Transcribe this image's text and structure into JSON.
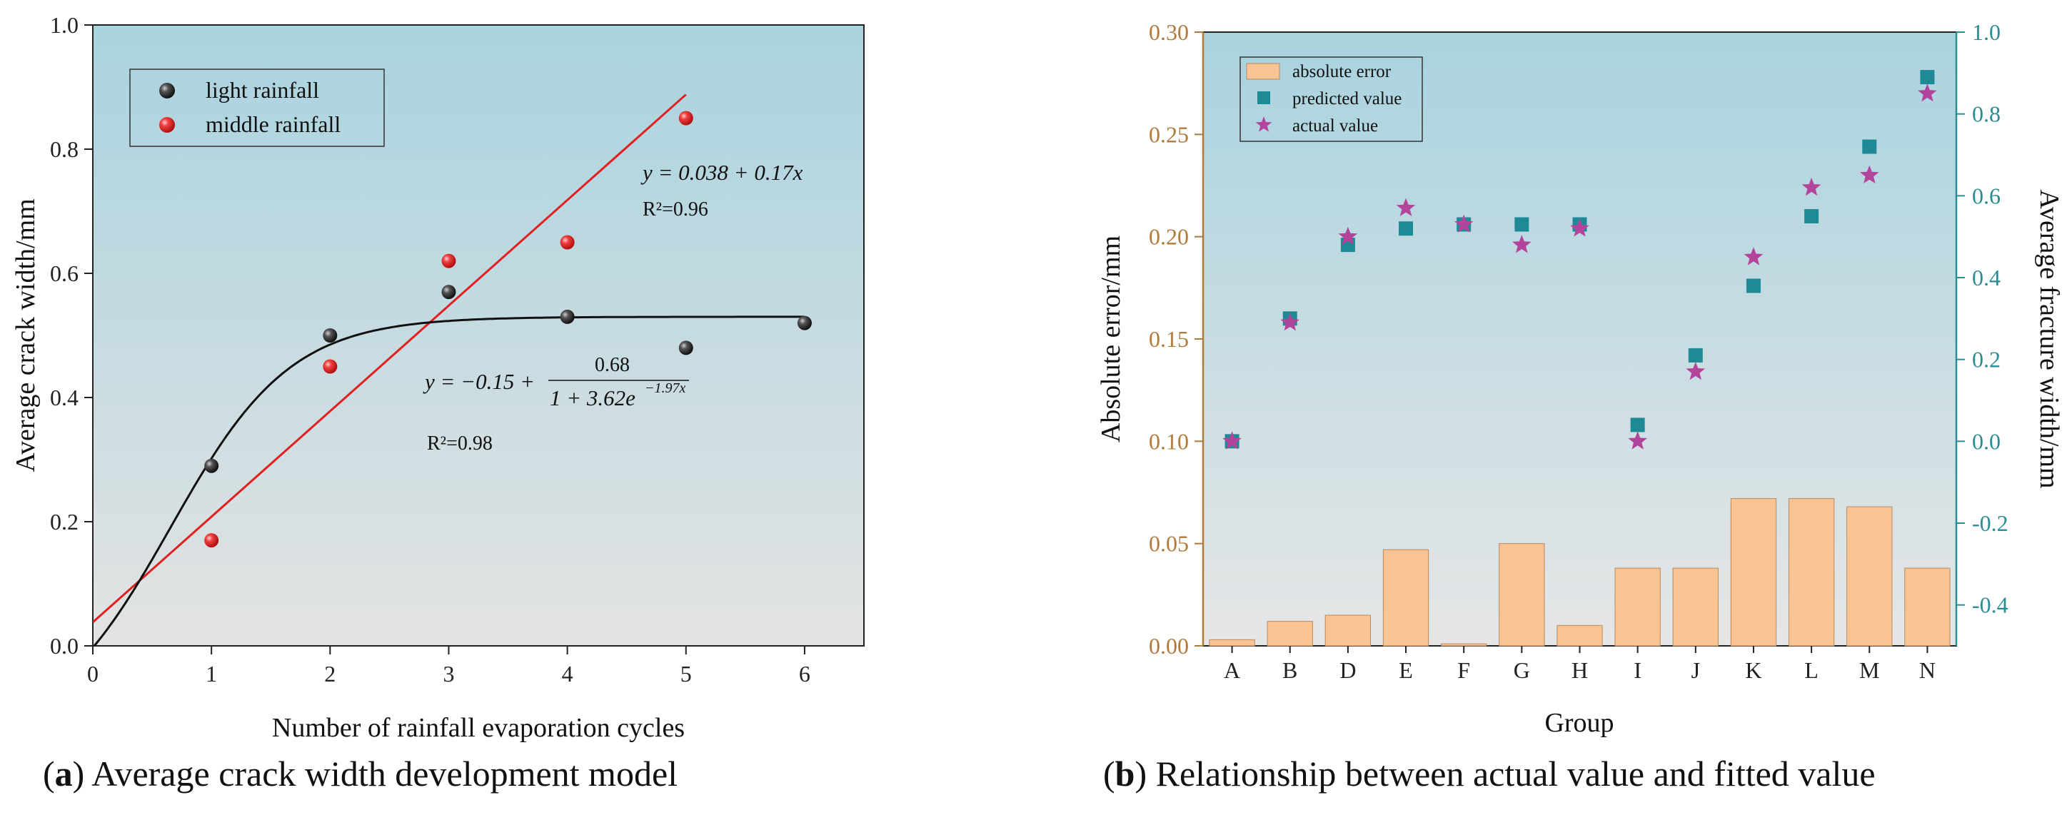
{
  "chart_data": [
    {
      "type": "scatter",
      "panel": "a",
      "caption_letter": "a",
      "caption_text": "Average crack width development model",
      "xlabel": "Number of rainfall evaporation cycles",
      "ylabel": "Average crack width/mm",
      "xlim": [
        0,
        6.5
      ],
      "ylim": [
        0,
        1.0
      ],
      "xticks": [
        0,
        1,
        2,
        3,
        4,
        5,
        6
      ],
      "yticks": [
        0.0,
        0.2,
        0.4,
        0.6,
        0.8,
        1.0
      ],
      "ytick_labels": [
        "0.0",
        "0.2",
        "0.4",
        "0.6",
        "0.8",
        "1.0"
      ],
      "series": [
        {
          "name": "light rainfall",
          "color": "#3a3a3a",
          "x": [
            1,
            2,
            3,
            4,
            5,
            6
          ],
          "y": [
            0.29,
            0.5,
            0.57,
            0.53,
            0.48,
            0.52
          ]
        },
        {
          "name": "middle rainfall",
          "color": "#e03030",
          "x": [
            1,
            2,
            3,
            4,
            5
          ],
          "y": [
            0.17,
            0.45,
            0.62,
            0.65,
            0.85
          ]
        }
      ],
      "fits": [
        {
          "name": "linear fit",
          "color": "#e02020",
          "model": "linear",
          "a": 0.038,
          "b": 0.17,
          "x_range": [
            0,
            5
          ],
          "equation": "y = 0.038 + 0.17x",
          "r2": "R²=0.96"
        },
        {
          "name": "logistic fit",
          "color": "#111111",
          "model": "logistic",
          "c": -0.15,
          "k": 0.68,
          "m": 3.62,
          "r": 1.97,
          "x_range": [
            0,
            6
          ],
          "equation_left": "y = −0.15 +",
          "equation_num": "0.68",
          "equation_den": "1 + 3.62e",
          "equation_exp": "−1.97x",
          "r2": "R²=0.98"
        }
      ],
      "background": {
        "top": "#a9d3df",
        "bottom": "#e3e3e3"
      }
    },
    {
      "type": "bar",
      "panel": "b",
      "caption_letter": "b",
      "caption_text": "Relationship between actual value and fitted value",
      "xlabel": "Group",
      "ylabel_left": "Absolute error/mm",
      "ylabel_right": "Average fracture width/mm",
      "categories": [
        "A",
        "B",
        "D",
        "E",
        "F",
        "G",
        "H",
        "I",
        "J",
        "K",
        "L",
        "M",
        "N"
      ],
      "ylim_left": [
        0,
        0.3
      ],
      "yticks_left": [
        "0.00",
        "0.05",
        "0.10",
        "0.15",
        "0.20",
        "0.25",
        "0.30"
      ],
      "ylim_right": [
        -0.5,
        1.0
      ],
      "yticks_right": [
        "-0.4",
        "-0.2",
        "0.0",
        "0.2",
        "0.4",
        "0.6",
        "0.8",
        "1.0"
      ],
      "series": [
        {
          "name": "absolute error",
          "axis": "left",
          "kind": "bar",
          "color": "#f9c394",
          "values": [
            0.003,
            0.012,
            0.015,
            0.047,
            0.001,
            0.05,
            0.01,
            0.038,
            0.038,
            0.072,
            0.072,
            0.068,
            0.038
          ]
        },
        {
          "name": "predicted value",
          "axis": "right",
          "kind": "square",
          "color": "#1e8a96",
          "values": [
            0.0,
            0.3,
            0.48,
            0.52,
            0.53,
            0.53,
            0.53,
            0.04,
            0.21,
            0.38,
            0.55,
            0.72,
            0.89
          ]
        },
        {
          "name": "actual value",
          "axis": "right",
          "kind": "star",
          "color": "#b3449c",
          "values": [
            0.0,
            0.29,
            0.5,
            0.57,
            0.53,
            0.48,
            0.52,
            0.0,
            0.17,
            0.45,
            0.62,
            0.65,
            0.85
          ]
        }
      ],
      "colors": {
        "left_axis": "#b07a3c",
        "right_axis": "#2a8d93"
      },
      "background": {
        "top": "#a9d3df",
        "bottom": "#e6e6e6"
      }
    }
  ]
}
